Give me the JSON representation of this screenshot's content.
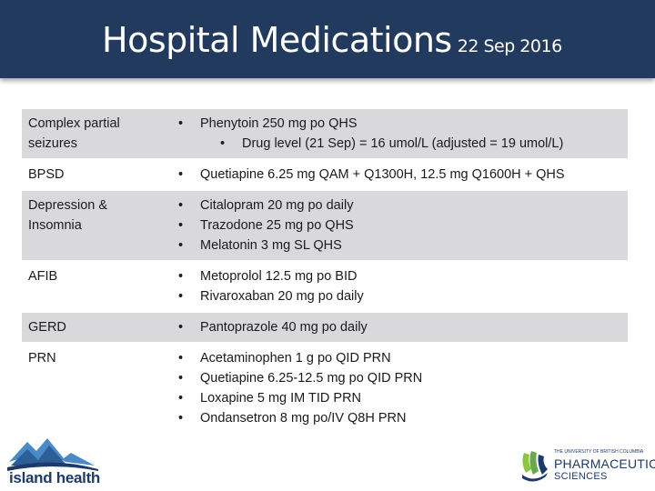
{
  "header": {
    "title": "Hospital Medications",
    "date": "22 Sep 2016"
  },
  "rows": [
    {
      "condition": [
        "Complex partial",
        "seizures"
      ],
      "meds": [
        "Phenytoin 250 mg po QHS"
      ],
      "sub": "Drug level (21 Sep) = 16 umol/L (adjusted = 19 umol/L)"
    },
    {
      "condition": [
        "BPSD"
      ],
      "meds": [
        "Quetiapine 6.25 mg QAM + Q1300H, 12.5 mg Q1600H + QHS"
      ]
    },
    {
      "condition": [
        "Depression &",
        "Insomnia"
      ],
      "meds": [
        "Citalopram 20 mg po daily",
        "Trazodone 25 mg po QHS",
        "Melatonin 3 mg SL QHS"
      ]
    },
    {
      "condition": [
        "AFIB"
      ],
      "meds": [
        "Metoprolol 12.5 mg po BID",
        "Rivaroxaban 20 mg po daily"
      ]
    },
    {
      "condition": [
        "GERD"
      ],
      "meds": [
        "Pantoprazole 40 mg po daily"
      ]
    },
    {
      "condition": [
        "PRN"
      ],
      "meds": [
        "Acetaminophen 1 g po QID PRN",
        "Quetiapine 6.25-12.5 mg po QID PRN",
        "Loxapine 5 mg IM TID PRN",
        "Ondansetron 8 mg po/IV Q8H PRN"
      ]
    }
  ],
  "bullet": "•",
  "logos": {
    "left_text": "island health",
    "right_small": "THE UNIVERSITY OF BRITISH COLUMBIA",
    "right_main": "PHARMACEUTICAL",
    "right_sub": "SCIENCES"
  },
  "colors": {
    "header_bg": "#223a5e",
    "row_shaded": "#d9d9dc",
    "logo_navy": "#1e3a6a",
    "logo_blue": "#4a8ac6",
    "logo_green": "#8cc63f"
  }
}
